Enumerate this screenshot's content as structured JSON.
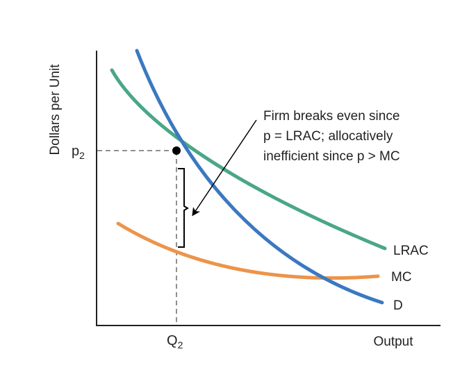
{
  "axes": {
    "y_label": "Dollars per Unit",
    "x_label": "Output"
  },
  "price": {
    "base": "p",
    "sub": "2"
  },
  "quantity": {
    "base": "Q",
    "sub": "2"
  },
  "curves": [
    {
      "key": "lrac",
      "label": "LRAC",
      "color": "#4aa785"
    },
    {
      "key": "mc",
      "label": "MC",
      "color": "#ec944a"
    },
    {
      "key": "d",
      "label": "D",
      "color": "#3b78c1"
    }
  ],
  "annotation": {
    "lines": [
      "Firm breaks even since",
      "p = LRAC; allocatively",
      "inefficient since p > MC"
    ]
  },
  "colors": {
    "axis": "#231f20",
    "guide": "#231f20",
    "point": "#000000"
  }
}
